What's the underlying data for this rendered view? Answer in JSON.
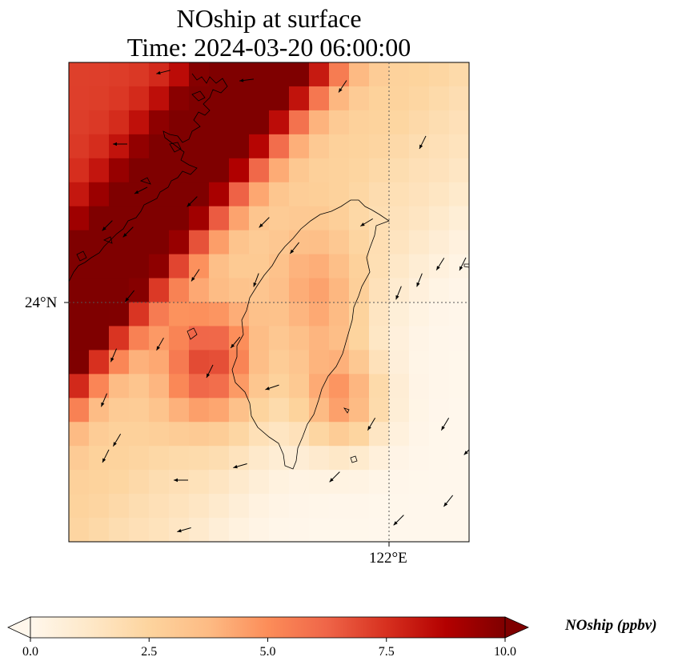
{
  "title": {
    "line1": "NOship at surface",
    "line2": "Time: 2024-03-20 06:00:00"
  },
  "map": {
    "lat_tick_label": "24°N",
    "lon_tick_label": "122°E",
    "field": "NOship",
    "gridlines": "dotted",
    "coastline_color": "#000000"
  },
  "colorbar": {
    "label": "NOship (ppbv)",
    "colormap": "OrRd",
    "vmin": 0.0,
    "vmax": 10.0,
    "extend": "both",
    "ticks": [
      "0.0",
      "2.5",
      "5.0",
      "7.5",
      "10.0"
    ],
    "colors": [
      "#fff7ec",
      "#fee8c8",
      "#fdd49e",
      "#fdbb84",
      "#fc8d59",
      "#ef6548",
      "#d7301f",
      "#b30000",
      "#7f0000"
    ]
  }
}
